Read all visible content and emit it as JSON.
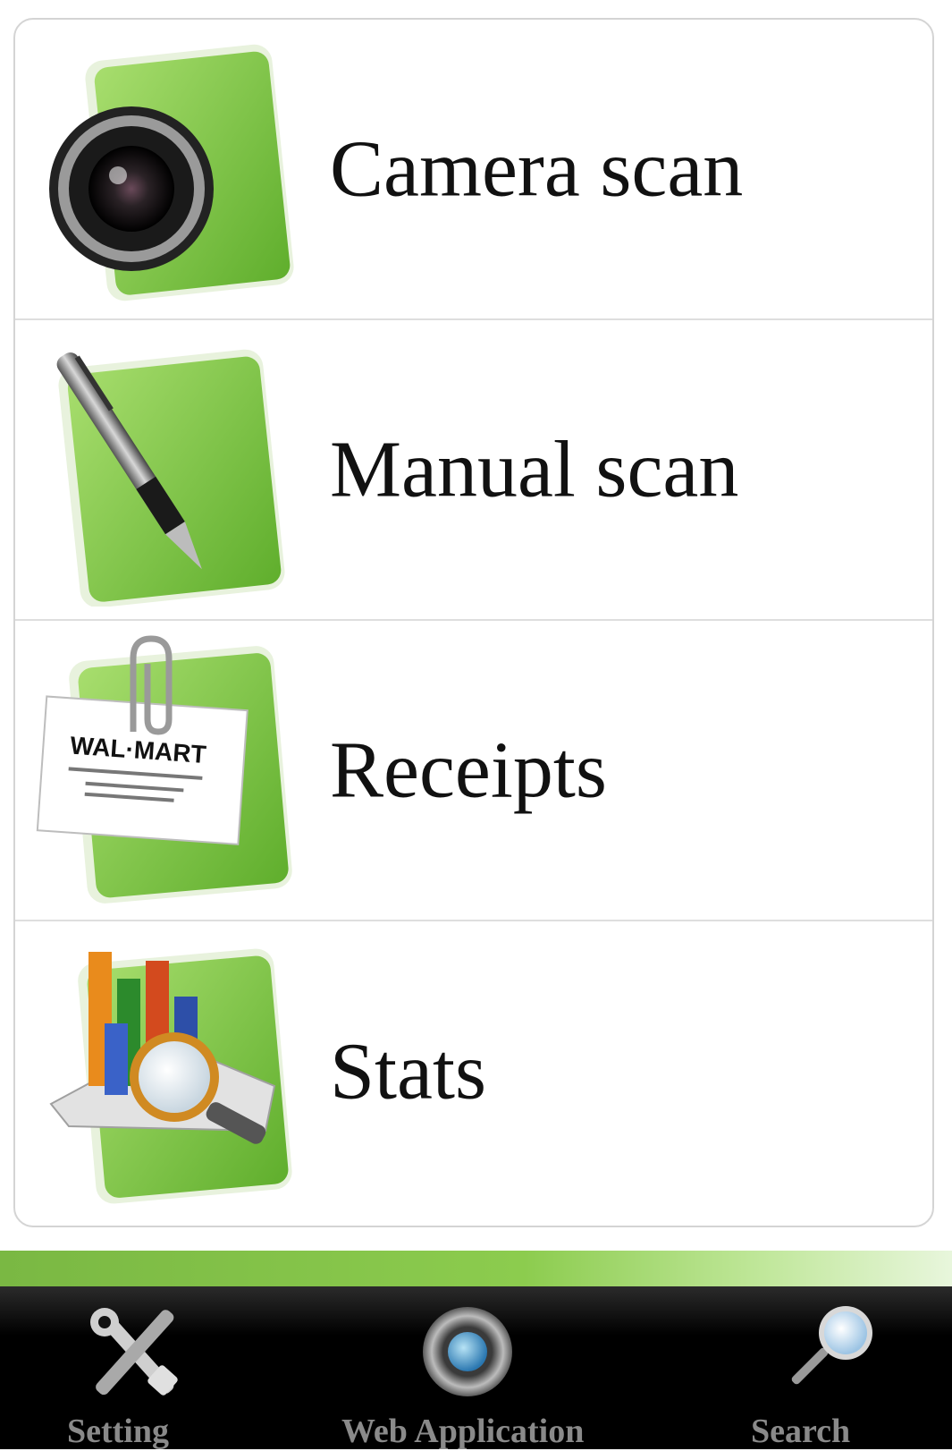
{
  "menu": {
    "items": [
      {
        "label": "Camera scan",
        "icon": "camera-icon"
      },
      {
        "label": "Manual scan",
        "icon": "pen-icon"
      },
      {
        "label": "Receipts",
        "icon": "receipt-icon",
        "receipt_text": "WAL·MART"
      },
      {
        "label": "Stats",
        "icon": "stats-icon"
      }
    ]
  },
  "tabbar": {
    "tabs": [
      {
        "label": "Setting",
        "icon": "tools-icon"
      },
      {
        "label": "Web Application",
        "icon": "globe-icon"
      },
      {
        "label": "Search",
        "icon": "magnifier-icon"
      }
    ]
  },
  "colors": {
    "accent_green": "#7ab843",
    "tabbar_bg": "#000000",
    "tab_label": "#8a8a8a"
  }
}
